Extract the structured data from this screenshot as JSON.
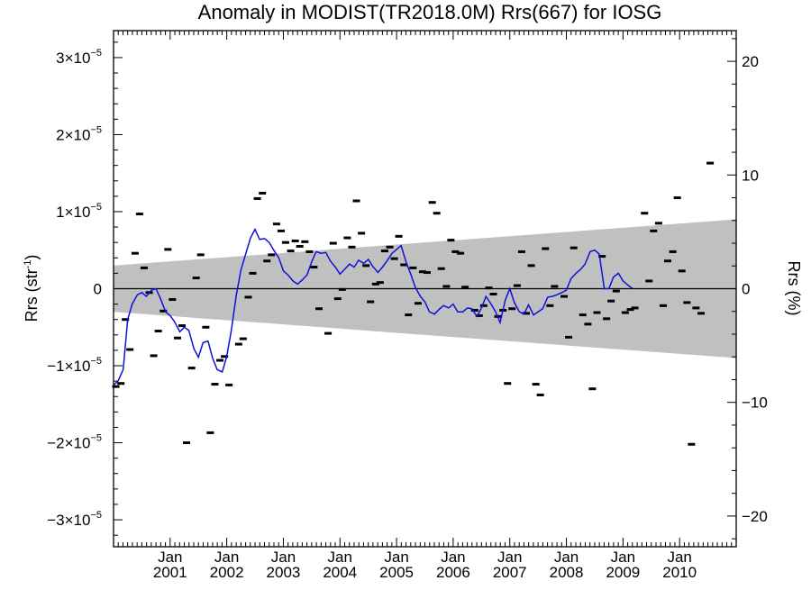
{
  "chart_data": {
    "type": "scatter",
    "title": "Anomaly in MODIST(TR2018.0M) Rrs(667) for IOSG",
    "ylabel": {
      "base": "Rrs (str",
      "exp": "-1",
      "end": ")"
    },
    "y2label": "Rrs (%)",
    "xlim": [
      2000.0,
      2011.0
    ],
    "ylim": [
      -3.35e-05,
      3.35e-05
    ],
    "y2lim": [
      -22.7,
      22.7
    ],
    "y_ticks": [
      {
        "value": 3e-05,
        "mantissa": "3",
        "times": "×10",
        "exp": "−5"
      },
      {
        "value": 2e-05,
        "mantissa": "2",
        "times": "×10",
        "exp": "−5"
      },
      {
        "value": 1e-05,
        "mantissa": "1",
        "times": "×10",
        "exp": "−5"
      },
      {
        "value": 0,
        "mantissa": "0",
        "times": "",
        "exp": ""
      },
      {
        "value": -1e-05,
        "mantissa": "−1",
        "times": "×10",
        "exp": "−5"
      },
      {
        "value": -2e-05,
        "mantissa": "−2",
        "times": "×10",
        "exp": "−5"
      },
      {
        "value": -3e-05,
        "mantissa": "−3",
        "times": "×10",
        "exp": "−5"
      }
    ],
    "y2_ticks": [
      {
        "value": 20,
        "label": "20"
      },
      {
        "value": 10,
        "label": "10"
      },
      {
        "value": 0,
        "label": "0"
      },
      {
        "value": -10,
        "label": "−10"
      },
      {
        "value": -20,
        "label": "−20"
      }
    ],
    "x_ticks": [
      {
        "value": 2001.0,
        "month": "Jan",
        "year": "2001"
      },
      {
        "value": 2002.0,
        "month": "Jan",
        "year": "2002"
      },
      {
        "value": 2003.0,
        "month": "Jan",
        "year": "2003"
      },
      {
        "value": 2004.0,
        "month": "Jan",
        "year": "2004"
      },
      {
        "value": 2005.0,
        "month": "Jan",
        "year": "2005"
      },
      {
        "value": 2006.0,
        "month": "Jan",
        "year": "2006"
      },
      {
        "value": 2007.0,
        "month": "Jan",
        "year": "2007"
      },
      {
        "value": 2008.0,
        "month": "Jan",
        "year": "2008"
      },
      {
        "value": 2009.0,
        "month": "Jan",
        "year": "2009"
      },
      {
        "value": 2010.0,
        "month": "Jan",
        "year": "2010"
      }
    ],
    "uncertainty_band": {
      "start": 2000.0,
      "end": 2011.0,
      "half_width_start": 3e-06,
      "half_width_end": 9e-06,
      "color": "#c0c0c0"
    },
    "zero_line": 0,
    "colors": {
      "points": "#000000",
      "line": "#1010dd",
      "band": "#c0c0c0"
    },
    "monthly_points": [
      [
        2000.04,
        -1.27e-05
      ],
      [
        2000.13,
        -1.23e-05
      ],
      [
        2000.21,
        -4e-06
      ],
      [
        2000.29,
        -7.9e-06
      ],
      [
        2000.38,
        4.6e-06
      ],
      [
        2000.46,
        9.7e-06
      ],
      [
        2000.54,
        2.7e-06
      ],
      [
        2000.63,
        -5e-07
      ],
      [
        2000.71,
        -8.7e-06
      ],
      [
        2000.79,
        -5.5e-06
      ],
      [
        2000.88,
        -2.9e-06
      ],
      [
        2000.96,
        5.1e-06
      ],
      [
        2001.04,
        -1.4e-06
      ],
      [
        2001.13,
        -6.4e-06
      ],
      [
        2001.21,
        -4.8e-06
      ],
      [
        2001.29,
        -2e-05
      ],
      [
        2001.38,
        -1.03e-05
      ],
      [
        2001.46,
        1.4e-06
      ],
      [
        2001.54,
        4.4e-06
      ],
      [
        2001.63,
        -5e-06
      ],
      [
        2001.71,
        -1.87e-05
      ],
      [
        2001.79,
        -1.24e-05
      ],
      [
        2001.88,
        -9.3e-06
      ],
      [
        2001.96,
        -8.8e-06
      ],
      [
        2002.04,
        -1.25e-05
      ],
      [
        2002.21,
        -7.2e-06
      ],
      [
        2002.29,
        -6.5e-06
      ],
      [
        2002.38,
        -1.1e-06
      ],
      [
        2002.46,
        2e-06
      ],
      [
        2002.54,
        1.17e-05
      ],
      [
        2002.63,
        1.24e-05
      ],
      [
        2002.71,
        3.6e-06
      ],
      [
        2002.79,
        4.4e-06
      ],
      [
        2002.88,
        8.4e-06
      ],
      [
        2002.96,
        7.5e-06
      ],
      [
        2003.04,
        6e-06
      ],
      [
        2003.13,
        4.9e-06
      ],
      [
        2003.21,
        6.2e-06
      ],
      [
        2003.29,
        5.5e-06
      ],
      [
        2003.38,
        6.1e-06
      ],
      [
        2003.46,
        4.8e-06
      ],
      [
        2003.54,
        2.8e-06
      ],
      [
        2003.63,
        -2.6e-06
      ],
      [
        2003.79,
        -5.8e-06
      ],
      [
        2003.88,
        5.9e-06
      ],
      [
        2003.96,
        -1.3e-06
      ],
      [
        2004.04,
        -1e-07
      ],
      [
        2004.13,
        6.6e-06
      ],
      [
        2004.21,
        5.4e-06
      ],
      [
        2004.29,
        1.14e-05
      ],
      [
        2004.38,
        7.2e-06
      ],
      [
        2004.46,
        3e-06
      ],
      [
        2004.54,
        -1.7e-06
      ],
      [
        2004.63,
        6e-07
      ],
      [
        2004.71,
        8e-07
      ],
      [
        2004.79,
        4.9e-06
      ],
      [
        2004.88,
        5.4e-06
      ],
      [
        2004.96,
        3.9e-06
      ],
      [
        2005.04,
        6.8e-06
      ],
      [
        2005.13,
        3.1e-06
      ],
      [
        2005.21,
        -3.4e-06
      ],
      [
        2005.29,
        2.7e-06
      ],
      [
        2005.38,
        -1.9e-06
      ],
      [
        2005.46,
        2.2e-06
      ],
      [
        2005.54,
        2.1e-06
      ],
      [
        2005.63,
        1.12e-05
      ],
      [
        2005.71,
        9.8e-06
      ],
      [
        2005.79,
        2.6e-06
      ],
      [
        2005.88,
        3e-07
      ],
      [
        2005.96,
        6.3e-06
      ],
      [
        2006.04,
        4.8e-06
      ],
      [
        2006.13,
        4.6e-06
      ],
      [
        2006.21,
        2e-07
      ],
      [
        2006.38,
        -2.8e-06
      ],
      [
        2006.46,
        -3.5e-06
      ],
      [
        2006.54,
        -2.2e-06
      ],
      [
        2006.63,
        1e-07
      ],
      [
        2006.71,
        -7e-07
      ],
      [
        2006.79,
        -3.6e-06
      ],
      [
        2006.88,
        -2.8e-06
      ],
      [
        2006.96,
        -1.23e-05
      ],
      [
        2007.04,
        -2.6e-06
      ],
      [
        2007.13,
        4e-07
      ],
      [
        2007.21,
        4.8e-06
      ],
      [
        2007.29,
        -3.2e-06
      ],
      [
        2007.38,
        3e-06
      ],
      [
        2007.46,
        -1.24e-05
      ],
      [
        2007.54,
        -1.38e-05
      ],
      [
        2007.63,
        5.2e-06
      ],
      [
        2007.71,
        -2.2e-06
      ],
      [
        2007.79,
        3e-07
      ],
      [
        2007.96,
        -1e-06
      ],
      [
        2008.04,
        -6.3e-06
      ],
      [
        2008.13,
        5.3e-06
      ],
      [
        2008.29,
        -3.4e-06
      ],
      [
        2008.38,
        -4.6e-06
      ],
      [
        2008.46,
        -1.3e-05
      ],
      [
        2008.54,
        -3.1e-06
      ],
      [
        2008.63,
        4.2e-06
      ],
      [
        2008.71,
        -3.9e-06
      ],
      [
        2008.79,
        -1.6e-06
      ],
      [
        2008.88,
        -3e-07
      ],
      [
        2009.04,
        -3.1e-06
      ],
      [
        2009.13,
        -2.7e-06
      ],
      [
        2009.21,
        -2.5e-06
      ],
      [
        2009.38,
        9.8e-06
      ],
      [
        2009.46,
        1e-06
      ],
      [
        2009.54,
        7.5e-06
      ],
      [
        2009.63,
        8.5e-06
      ],
      [
        2009.71,
        -2.2e-06
      ],
      [
        2009.79,
        3.6e-06
      ],
      [
        2009.88,
        4.8e-06
      ],
      [
        2009.96,
        1.18e-05
      ],
      [
        2010.04,
        2.3e-06
      ],
      [
        2010.13,
        -1.8e-06
      ],
      [
        2010.21,
        -2.02e-05
      ],
      [
        2010.29,
        -2.5e-06
      ],
      [
        2010.38,
        -3.2e-06
      ],
      [
        2010.54,
        1.63e-05
      ]
    ],
    "running_mean": [
      [
        2000.0,
        -1.25e-05
      ],
      [
        2000.08,
        -1.2e-05
      ],
      [
        2000.17,
        -1.05e-05
      ],
      [
        2000.25,
        -4e-06
      ],
      [
        2000.33,
        -2e-06
      ],
      [
        2000.42,
        -8e-07
      ],
      [
        2000.5,
        -5e-07
      ],
      [
        2000.58,
        -1e-06
      ],
      [
        2000.67,
        -2e-07
      ],
      [
        2000.75,
        0.0
      ],
      [
        2000.83,
        -1.3e-06
      ],
      [
        2000.92,
        -3e-06
      ],
      [
        2001.0,
        -3.5e-06
      ],
      [
        2001.08,
        -4.3e-06
      ],
      [
        2001.17,
        -5.6e-06
      ],
      [
        2001.25,
        -5e-06
      ],
      [
        2001.33,
        -5.4e-06
      ],
      [
        2001.42,
        -7.8e-06
      ],
      [
        2001.5,
        -8.9e-06
      ],
      [
        2001.58,
        -7e-06
      ],
      [
        2001.67,
        -6.8e-06
      ],
      [
        2001.75,
        -9e-06
      ],
      [
        2001.83,
        -1.05e-05
      ],
      [
        2001.92,
        -1.08e-05
      ],
      [
        2002.0,
        -8.8e-06
      ],
      [
        2002.08,
        -5.4e-06
      ],
      [
        2002.17,
        -8e-07
      ],
      [
        2002.25,
        2.4e-06
      ],
      [
        2002.33,
        4.4e-06
      ],
      [
        2002.42,
        6.6e-06
      ],
      [
        2002.5,
        7.7e-06
      ],
      [
        2002.58,
        6.4e-06
      ],
      [
        2002.67,
        6.5e-06
      ],
      [
        2002.75,
        6e-06
      ],
      [
        2002.83,
        5e-06
      ],
      [
        2002.92,
        4e-06
      ],
      [
        2003.0,
        2.3e-06
      ],
      [
        2003.08,
        1.8e-06
      ],
      [
        2003.17,
        1e-06
      ],
      [
        2003.25,
        6e-07
      ],
      [
        2003.33,
        1.1e-06
      ],
      [
        2003.42,
        1.8e-06
      ],
      [
        2003.5,
        3.5e-06
      ],
      [
        2003.58,
        4.8e-06
      ],
      [
        2003.67,
        4.6e-06
      ],
      [
        2003.75,
        4.7e-06
      ],
      [
        2003.83,
        3.6e-06
      ],
      [
        2003.92,
        2.8e-06
      ],
      [
        2004.0,
        1.9e-06
      ],
      [
        2004.08,
        2.5e-06
      ],
      [
        2004.17,
        3.2e-06
      ],
      [
        2004.25,
        2.8e-06
      ],
      [
        2004.33,
        3.7e-06
      ],
      [
        2004.42,
        3.3e-06
      ],
      [
        2004.5,
        3.8e-06
      ],
      [
        2004.58,
        2.9e-06
      ],
      [
        2004.67,
        2.1e-06
      ],
      [
        2004.75,
        2.8e-06
      ],
      [
        2004.83,
        3.6e-06
      ],
      [
        2004.92,
        4.6e-06
      ],
      [
        2005.0,
        5.1e-06
      ],
      [
        2005.08,
        5.6e-06
      ],
      [
        2005.17,
        3.4e-06
      ],
      [
        2005.25,
        1.9e-06
      ],
      [
        2005.33,
        2e-07
      ],
      [
        2005.42,
        -1e-06
      ],
      [
        2005.5,
        -1.7e-06
      ],
      [
        2005.58,
        -3e-06
      ],
      [
        2005.67,
        -3.3e-06
      ],
      [
        2005.75,
        -2.7e-06
      ],
      [
        2005.83,
        -2.2e-06
      ],
      [
        2005.92,
        -2.5e-06
      ],
      [
        2006.0,
        -2e-06
      ],
      [
        2006.08,
        -3e-06
      ],
      [
        2006.17,
        -3e-06
      ],
      [
        2006.25,
        -2.5e-06
      ],
      [
        2006.33,
        -2.6e-06
      ],
      [
        2006.42,
        -3.6e-06
      ],
      [
        2006.5,
        -2.5e-06
      ],
      [
        2006.58,
        -1e-06
      ],
      [
        2006.67,
        -2e-06
      ],
      [
        2006.75,
        -3e-06
      ],
      [
        2006.83,
        -4.4e-06
      ],
      [
        2006.92,
        -1.5e-06
      ],
      [
        2007.0,
        0.0
      ],
      [
        2007.08,
        -1.8e-06
      ],
      [
        2007.17,
        -3e-06
      ],
      [
        2007.25,
        -3.3e-06
      ],
      [
        2007.33,
        -2.1e-06
      ],
      [
        2007.42,
        -3.4e-06
      ],
      [
        2007.5,
        -3e-06
      ],
      [
        2007.58,
        -2.6e-06
      ],
      [
        2007.67,
        -1.1e-06
      ],
      [
        2007.75,
        -1e-06
      ],
      [
        2007.83,
        -8e-07
      ],
      [
        2007.92,
        -5e-07
      ],
      [
        2008.0,
        -2e-07
      ],
      [
        2008.08,
        1.3e-06
      ],
      [
        2008.17,
        2e-06
      ],
      [
        2008.25,
        2.5e-06
      ],
      [
        2008.33,
        3.2e-06
      ],
      [
        2008.42,
        4.8e-06
      ],
      [
        2008.5,
        5e-06
      ],
      [
        2008.58,
        4.5e-06
      ],
      [
        2008.67,
        0.0
      ],
      [
        2008.75,
        0.0
      ],
      [
        2008.83,
        1.5e-06
      ],
      [
        2008.92,
        2e-06
      ],
      [
        2009.0,
        1e-06
      ],
      [
        2009.08,
        5e-07
      ],
      [
        2009.17,
        0.0
      ]
    ]
  }
}
